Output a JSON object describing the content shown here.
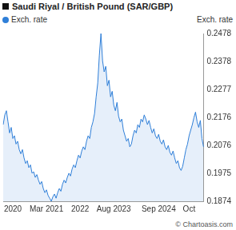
{
  "chart_data": {
    "type": "line",
    "title": "Saudi Riyal / British Pound (SAR/GBP)",
    "y_label": "Exch. rate",
    "annotations": [
      "© Chartoasis.com"
    ],
    "legend": "top-left",
    "grid": false,
    "categories": [
      null,
      null,
      null,
      null,
      null,
      null,
      "2020",
      null,
      null,
      null,
      null,
      null,
      null,
      null,
      null,
      null,
      null,
      null,
      null,
      null,
      null,
      null,
      null,
      null,
      null,
      null,
      null,
      "Mar 2021",
      null,
      null,
      null,
      null,
      null,
      null,
      null,
      null,
      null,
      null,
      null,
      null,
      null,
      null,
      null,
      null,
      null,
      null,
      null,
      null,
      "2022",
      null,
      null,
      null,
      null,
      null,
      null,
      null,
      null,
      null,
      null,
      null,
      null,
      null,
      null,
      null,
      null,
      null,
      null,
      null,
      null,
      "Aug 2023",
      null,
      null,
      null,
      null,
      null,
      null,
      null,
      null,
      null,
      null,
      null,
      null,
      null,
      null,
      null,
      null,
      null,
      null,
      null,
      null,
      null,
      null,
      null,
      null,
      null,
      null,
      null,
      "Sep 2024",
      null,
      null,
      null,
      null,
      null,
      null,
      null,
      null,
      null,
      null,
      null,
      null,
      null,
      null,
      null,
      null,
      null,
      null,
      "Oct",
      null,
      null,
      null,
      null,
      null,
      null,
      null,
      null,
      null
    ],
    "series": [
      {
        "name": "Exch. rate",
        "color": "#2f7fd8",
        "values": [
          0.215,
          0.2185,
          0.22,
          0.216,
          0.212,
          0.214,
          0.21,
          0.211,
          0.208,
          0.209,
          0.206,
          0.2045,
          0.206,
          0.203,
          0.201,
          0.202,
          0.1995,
          0.2005,
          0.1975,
          0.198,
          0.196,
          0.197,
          0.195,
          0.1935,
          0.1945,
          0.192,
          0.1905,
          0.1915,
          0.1895,
          0.1885,
          0.1874,
          0.189,
          0.19,
          0.1885,
          0.1905,
          0.192,
          0.191,
          0.1935,
          0.195,
          0.194,
          0.196,
          0.1975,
          0.1965,
          0.199,
          0.2005,
          0.1995,
          0.202,
          0.204,
          0.203,
          0.2055,
          0.207,
          0.206,
          0.209,
          0.211,
          0.21,
          0.214,
          0.216,
          0.219,
          0.225,
          0.23,
          0.24,
          0.2478,
          0.238,
          0.234,
          0.236,
          0.229,
          0.231,
          0.225,
          0.227,
          0.222,
          0.22,
          0.223,
          0.218,
          0.216,
          0.217,
          0.213,
          0.211,
          0.209,
          0.21,
          0.207,
          0.208,
          0.211,
          0.213,
          0.212,
          0.215,
          0.214,
          0.217,
          0.216,
          0.2185,
          0.217,
          0.215,
          0.2165,
          0.214,
          0.212,
          0.2135,
          0.211,
          0.21,
          0.2115,
          0.209,
          0.208,
          0.2095,
          0.207,
          0.206,
          0.2075,
          0.205,
          0.204,
          0.2055,
          0.203,
          0.201,
          0.202,
          0.1995,
          0.1985,
          0.2,
          0.203,
          0.206,
          0.208,
          0.211,
          0.213,
          0.215,
          0.2175,
          0.2195,
          0.216,
          0.214,
          0.2165,
          0.21,
          0.207
        ]
      }
    ],
    "ylim": [
      0.1874,
      0.2478
    ],
    "yticks": [
      0.1874,
      0.1975,
      0.2076,
      0.2176,
      0.2277,
      0.2378,
      0.2478
    ]
  }
}
